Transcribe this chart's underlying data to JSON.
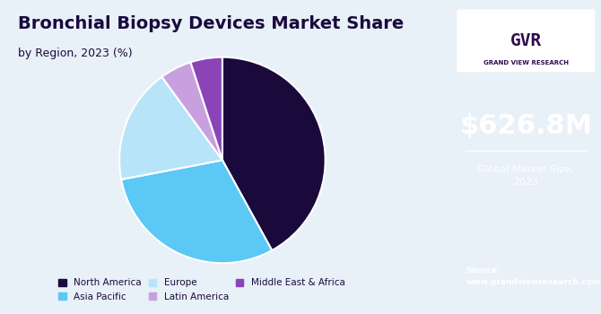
{
  "title": "Bronchial Biopsy Devices Market Share",
  "subtitle": "by Region, 2023 (%)",
  "segments": [
    "North America",
    "Asia Pacific",
    "Europe",
    "Latin America",
    "Middle East & Africa"
  ],
  "values": [
    42,
    30,
    18,
    5,
    5
  ],
  "colors": [
    "#1a0a3c",
    "#5bc8f5",
    "#b8e4f9",
    "#c8a0e0",
    "#8b44b8"
  ],
  "legend_labels": [
    "North America",
    "Asia Pacific",
    "Europe",
    "Latin America",
    "Middle East & Africa"
  ],
  "background_color": "#e8f0f8",
  "right_panel_color": "#2d0a4e",
  "market_size": "$626.8M",
  "market_size_label": "Global Market Size,\n2023",
  "source_text": "Source:\nwww.grandviewresearch.com",
  "title_color": "#1a0a3c",
  "subtitle_color": "#1a0a3c"
}
